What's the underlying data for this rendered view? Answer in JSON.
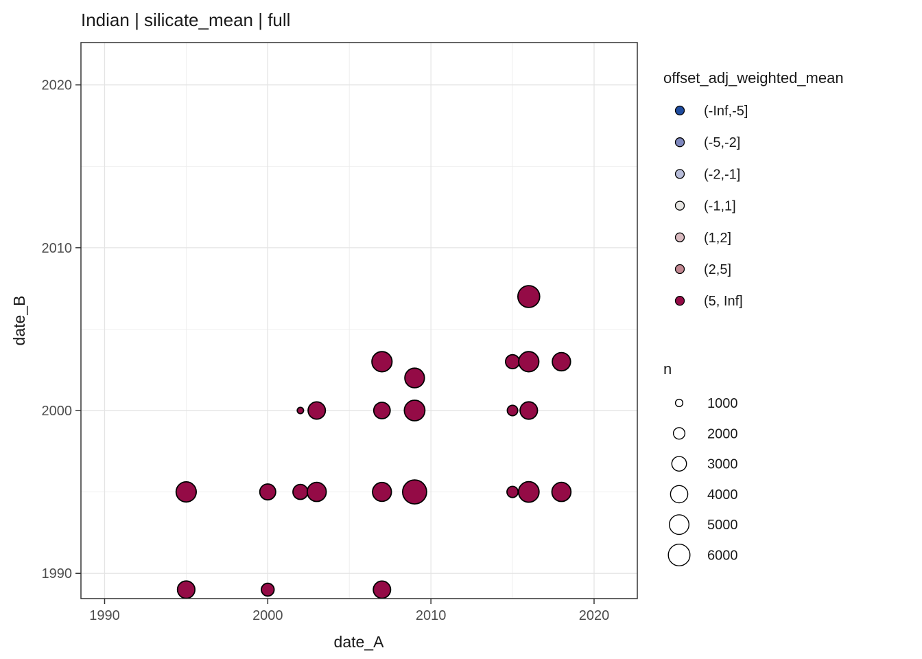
{
  "title": "Indian | silicate_mean | full",
  "chart_data": {
    "type": "scatter",
    "title": "Indian | silicate_mean | full",
    "xlabel": "date_A",
    "ylabel": "date_B",
    "xlim": [
      1988.55,
      2022.65
    ],
    "ylim": [
      1988.45,
      2022.6
    ],
    "x_ticks": [
      1990,
      2000,
      2010,
      2020
    ],
    "y_ticks": [
      1990,
      2000,
      2010,
      2020
    ],
    "x_minor_ticks": [
      1995,
      2005,
      2015
    ],
    "y_minor_ticks": [
      1995,
      2005,
      2015
    ],
    "grid": true,
    "legend_position": "right",
    "all_points_color_bin": "(5, Inf]",
    "point_fill": "#940B46",
    "point_stroke": "#000000",
    "points": [
      {
        "x": 1995,
        "y": 1995,
        "n": 5300
      },
      {
        "x": 1995,
        "y": 1989,
        "n": 4100
      },
      {
        "x": 2000,
        "y": 1995,
        "n": 3500
      },
      {
        "x": 2000,
        "y": 1989,
        "n": 2400
      },
      {
        "x": 2002,
        "y": 2000,
        "n": 800
      },
      {
        "x": 2002,
        "y": 1995,
        "n": 3100
      },
      {
        "x": 2003,
        "y": 2000,
        "n": 4000
      },
      {
        "x": 2003,
        "y": 1995,
        "n": 4800
      },
      {
        "x": 2007,
        "y": 2003,
        "n": 5300
      },
      {
        "x": 2007,
        "y": 2000,
        "n": 3700
      },
      {
        "x": 2007,
        "y": 1995,
        "n": 4700
      },
      {
        "x": 2007,
        "y": 1989,
        "n": 4000
      },
      {
        "x": 2009,
        "y": 2002,
        "n": 5000
      },
      {
        "x": 2009,
        "y": 2000,
        "n": 5500
      },
      {
        "x": 2009,
        "y": 1995,
        "n": 7200
      },
      {
        "x": 2015,
        "y": 2003,
        "n": 2800
      },
      {
        "x": 2015,
        "y": 2000,
        "n": 1700
      },
      {
        "x": 2015,
        "y": 1995,
        "n": 1900
      },
      {
        "x": 2016,
        "y": 2007,
        "n": 6100
      },
      {
        "x": 2016,
        "y": 2003,
        "n": 5300
      },
      {
        "x": 2016,
        "y": 2000,
        "n": 4100
      },
      {
        "x": 2016,
        "y": 1995,
        "n": 5500
      },
      {
        "x": 2018,
        "y": 2003,
        "n": 4400
      },
      {
        "x": 2018,
        "y": 1995,
        "n": 4800
      }
    ]
  },
  "color_legend": {
    "title": "offset_adj_weighted_mean",
    "items": [
      {
        "label": "(-Inf,-5]",
        "color": "#1F4C9E"
      },
      {
        "label": "(-5,-2]",
        "color": "#7F88BE"
      },
      {
        "label": "(-2,-1]",
        "color": "#B7BCD8"
      },
      {
        "label": "(-1,1]",
        "color": "#E7E5E2"
      },
      {
        "label": "(1,2]",
        "color": "#D9BAC0"
      },
      {
        "label": "(2,5]",
        "color": "#C28791"
      },
      {
        "label": "(5, Inf]",
        "color": "#940B46"
      }
    ]
  },
  "size_legend": {
    "title": "n",
    "items": [
      {
        "label": "1000",
        "n": 1000
      },
      {
        "label": "2000",
        "n": 2000
      },
      {
        "label": "3000",
        "n": 3000
      },
      {
        "label": "4000",
        "n": 4000
      },
      {
        "label": "5000",
        "n": 5000
      },
      {
        "label": "6000",
        "n": 6000
      }
    ]
  },
  "colors": {
    "panel_border": "#333333",
    "grid_major": "#E4E4E4",
    "grid_minor": "#EDEDED",
    "tick_mark": "#333333",
    "tick_label": "#4d4d4d"
  }
}
